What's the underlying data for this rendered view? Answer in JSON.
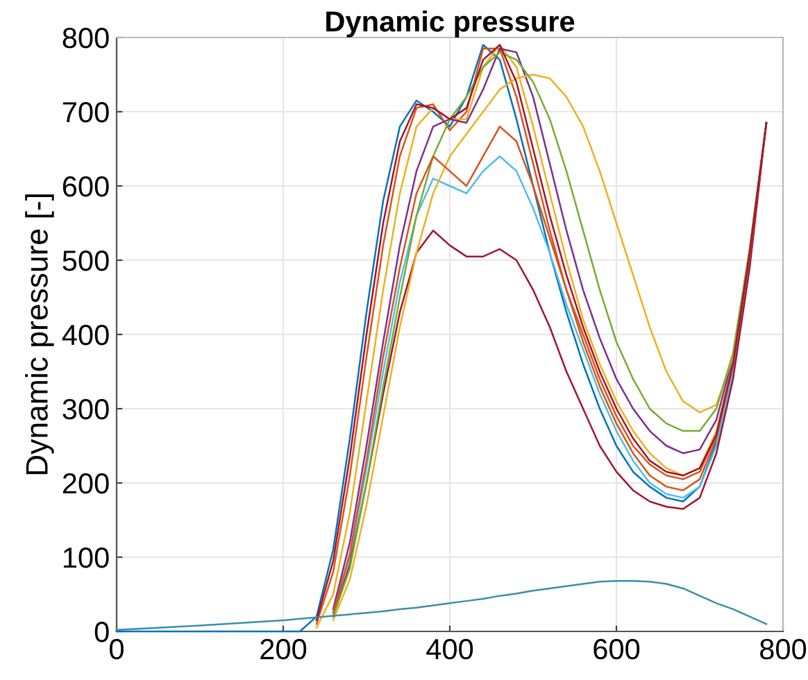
{
  "chart_data": {
    "type": "line",
    "title": "Dynamic pressure",
    "ylabel": "Dynamic pressure [-]",
    "x": [
      0,
      100,
      200,
      220,
      240,
      260,
      280,
      300,
      320,
      340,
      360,
      380,
      400,
      420,
      440,
      460,
      480,
      500,
      520,
      540,
      560,
      580,
      600,
      620,
      640,
      660,
      680,
      700,
      720,
      740,
      760,
      780
    ],
    "series": [
      {
        "color": "#0072bd",
        "values": [
          0,
          0,
          0,
          0,
          20,
          110,
          260,
          430,
          580,
          680,
          715,
          700,
          680,
          720,
          790,
          770,
          690,
          600,
          510,
          430,
          360,
          300,
          250,
          215,
          195,
          180,
          175,
          195,
          255,
          360,
          510,
          685
        ]
      },
      {
        "color": "#d95319",
        "values": [
          null,
          null,
          null,
          null,
          10,
          80,
          210,
          370,
          520,
          640,
          705,
          710,
          675,
          700,
          785,
          785,
          720,
          630,
          540,
          460,
          390,
          330,
          280,
          240,
          210,
          195,
          190,
          205,
          260,
          360,
          510,
          685
        ]
      },
      {
        "color": "#edb120",
        "values": [
          null,
          null,
          null,
          null,
          5,
          50,
          160,
          310,
          460,
          590,
          680,
          705,
          690,
          690,
          760,
          790,
          760,
          680,
          590,
          500,
          420,
          360,
          310,
          270,
          240,
          220,
          210,
          220,
          270,
          365,
          510,
          685
        ]
      },
      {
        "color": "#7e2f8e",
        "values": [
          null,
          null,
          null,
          null,
          null,
          30,
          120,
          250,
          390,
          520,
          620,
          680,
          690,
          685,
          730,
          785,
          780,
          720,
          630,
          540,
          460,
          395,
          340,
          300,
          270,
          250,
          240,
          245,
          285,
          370,
          515,
          685
        ]
      },
      {
        "color": "#4dbeee",
        "values": [
          null,
          null,
          null,
          null,
          null,
          25,
          100,
          220,
          350,
          470,
          560,
          610,
          600,
          590,
          620,
          640,
          620,
          570,
          510,
          440,
          380,
          320,
          270,
          230,
          200,
          185,
          180,
          195,
          250,
          350,
          500,
          685
        ]
      },
      {
        "color": "#a2142f",
        "values": [
          null,
          null,
          null,
          null,
          null,
          20,
          90,
          200,
          320,
          430,
          510,
          540,
          520,
          505,
          505,
          515,
          500,
          460,
          410,
          350,
          300,
          250,
          215,
          190,
          175,
          168,
          165,
          180,
          240,
          340,
          490,
          685
        ]
      },
      {
        "color": "#edb120",
        "values": [
          null,
          null,
          null,
          null,
          null,
          15,
          70,
          170,
          290,
          410,
          510,
          590,
          640,
          670,
          700,
          730,
          745,
          750,
          745,
          720,
          680,
          620,
          550,
          480,
          410,
          350,
          310,
          295,
          305,
          370,
          510,
          685
        ]
      },
      {
        "color": "#77ac30",
        "values": [
          null,
          null,
          null,
          null,
          null,
          20,
          85,
          200,
          330,
          450,
          560,
          640,
          690,
          720,
          760,
          780,
          770,
          740,
          690,
          620,
          540,
          460,
          390,
          340,
          300,
          280,
          270,
          270,
          300,
          375,
          515,
          685
        ]
      },
      {
        "color": "#d95319",
        "values": [
          null,
          null,
          null,
          null,
          null,
          25,
          105,
          230,
          370,
          490,
          590,
          640,
          620,
          600,
          640,
          680,
          660,
          600,
          530,
          460,
          400,
          340,
          290,
          250,
          225,
          210,
          205,
          215,
          265,
          360,
          505,
          685
        ]
      },
      {
        "color": "#a2142f",
        "values": [
          null,
          null,
          null,
          null,
          15,
          95,
          235,
          400,
          550,
          660,
          710,
          705,
          690,
          705,
          770,
          790,
          740,
          650,
          560,
          480,
          410,
          350,
          300,
          260,
          230,
          215,
          210,
          220,
          265,
          360,
          510,
          685
        ]
      },
      {
        "color": "#3a8fa8",
        "values": [
          2,
          8,
          15,
          17,
          19,
          21,
          23,
          25,
          27,
          30,
          32,
          35,
          38,
          41,
          44,
          48,
          51,
          55,
          58,
          61,
          64,
          67,
          68,
          68,
          67,
          64,
          58,
          48,
          38,
          30,
          20,
          10
        ]
      }
    ],
    "xlim": [
      0,
      800
    ],
    "ylim": [
      0,
      800
    ],
    "xticks": [
      0,
      200,
      400,
      600,
      800
    ],
    "yticks": [
      0,
      100,
      200,
      300,
      400,
      500,
      600,
      700,
      800
    ],
    "grid": true,
    "legend": false
  }
}
